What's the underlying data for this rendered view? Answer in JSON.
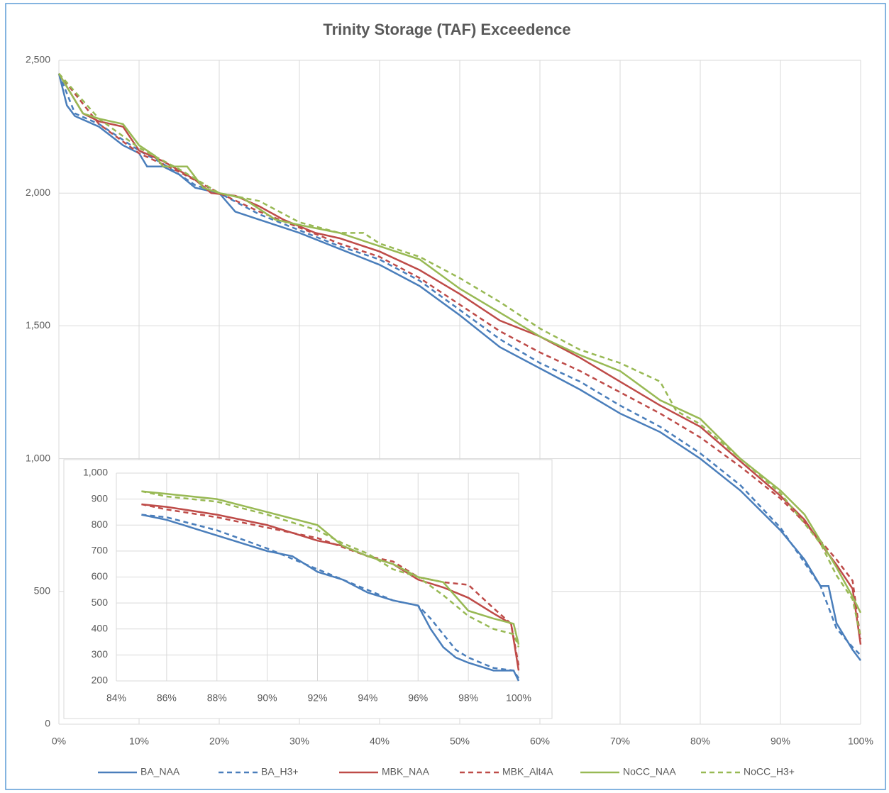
{
  "chart_data": [
    {
      "type": "line",
      "title": "Trinity Storage (TAF) Exceedence",
      "grid": true,
      "legend": "bottom",
      "xlim": [
        0,
        100
      ],
      "ylim": [
        0,
        2500
      ],
      "xticks": [
        {
          "value": 0,
          "label": "0%"
        },
        {
          "value": 10,
          "label": "10%"
        },
        {
          "value": 20,
          "label": "20%"
        },
        {
          "value": 30,
          "label": "30%"
        },
        {
          "value": 40,
          "label": "40%"
        },
        {
          "value": 50,
          "label": "50%"
        },
        {
          "value": 60,
          "label": "60%"
        },
        {
          "value": 70,
          "label": "70%"
        },
        {
          "value": 80,
          "label": "80%"
        },
        {
          "value": 90,
          "label": "90%"
        },
        {
          "value": 100,
          "label": "100%"
        }
      ],
      "yticks": [
        0,
        500,
        {
          "value": 1000,
          "label": "1,000"
        },
        {
          "value": 1500,
          "label": "1,500"
        },
        {
          "value": 2000,
          "label": "2,000"
        },
        {
          "value": 2500,
          "label": "2,500"
        }
      ],
      "series": [
        {
          "name": "BA_NAA",
          "color": "#4a7ebb",
          "dashed": false,
          "x": [
            0,
            1,
            2,
            5,
            8,
            10,
            11,
            13,
            15,
            17,
            20,
            22,
            25,
            28,
            30,
            35,
            40,
            45,
            50,
            55,
            60,
            65,
            70,
            75,
            80,
            85,
            90,
            93,
            95,
            96,
            97,
            99,
            100
          ],
          "values": [
            2450,
            2330,
            2290,
            2250,
            2180,
            2150,
            2100,
            2100,
            2070,
            2020,
            2000,
            1930,
            1900,
            1870,
            1850,
            1790,
            1730,
            1650,
            1540,
            1420,
            1340,
            1260,
            1170,
            1100,
            1000,
            880,
            730,
            620,
            520,
            520,
            380,
            280,
            240
          ]
        },
        {
          "name": "BA_H3+",
          "color": "#4a7ebb",
          "dashed": true,
          "x": [
            0,
            2,
            5,
            10,
            13,
            17,
            20,
            25,
            30,
            35,
            40,
            45,
            50,
            55,
            60,
            65,
            70,
            75,
            80,
            85,
            90,
            95,
            97,
            99,
            100
          ],
          "values": [
            2450,
            2300,
            2260,
            2160,
            2110,
            2030,
            2000,
            1920,
            1860,
            1800,
            1750,
            1670,
            1560,
            1450,
            1360,
            1290,
            1200,
            1120,
            1020,
            900,
            740,
            520,
            360,
            290,
            260
          ]
        },
        {
          "name": "MBK_NAA",
          "color": "#be4b48",
          "dashed": false,
          "x": [
            0,
            3,
            5,
            8,
            10,
            13,
            17,
            19,
            22,
            25,
            28,
            32,
            35,
            40,
            45,
            50,
            55,
            60,
            65,
            70,
            75,
            80,
            85,
            90,
            93,
            95,
            97,
            99,
            100
          ],
          "values": [
            2450,
            2300,
            2270,
            2250,
            2160,
            2120,
            2050,
            2000,
            1990,
            1950,
            1900,
            1850,
            1830,
            1780,
            1710,
            1620,
            1520,
            1460,
            1380,
            1290,
            1200,
            1120,
            990,
            860,
            770,
            680,
            600,
            510,
            300
          ]
        },
        {
          "name": "MBK_Alt4A",
          "color": "#be4b48",
          "dashed": true,
          "x": [
            0,
            5,
            10,
            15,
            20,
            25,
            30,
            35,
            40,
            45,
            50,
            55,
            60,
            65,
            70,
            75,
            80,
            85,
            90,
            93,
            95,
            97,
            99,
            100
          ],
          "values": [
            2450,
            2260,
            2150,
            2080,
            2000,
            1930,
            1870,
            1810,
            1760,
            1680,
            1580,
            1480,
            1400,
            1330,
            1250,
            1170,
            1080,
            970,
            850,
            760,
            690,
            620,
            540,
            320
          ]
        },
        {
          "name": "NoCC_NAA",
          "color": "#98b954",
          "dashed": false,
          "x": [
            0,
            3,
            5,
            8,
            10,
            12,
            13,
            16,
            18,
            20,
            23,
            27,
            30,
            35,
            40,
            45,
            50,
            55,
            60,
            65,
            70,
            75,
            80,
            85,
            90,
            93,
            95,
            97,
            99,
            100
          ],
          "values": [
            2450,
            2300,
            2280,
            2260,
            2180,
            2140,
            2100,
            2100,
            2020,
            2000,
            1980,
            1900,
            1880,
            1850,
            1800,
            1750,
            1640,
            1550,
            1460,
            1390,
            1330,
            1220,
            1150,
            1000,
            880,
            790,
            690,
            590,
            480,
            420
          ]
        },
        {
          "name": "NoCC_H3+",
          "color": "#98b954",
          "dashed": true,
          "x": [
            0,
            5,
            10,
            15,
            20,
            25,
            30,
            35,
            38,
            40,
            45,
            50,
            55,
            60,
            65,
            70,
            75,
            77,
            80,
            85,
            90,
            95,
            97,
            99,
            100
          ],
          "values": [
            2450,
            2280,
            2170,
            2090,
            2000,
            1970,
            1890,
            1850,
            1850,
            1810,
            1760,
            1680,
            1590,
            1490,
            1410,
            1360,
            1290,
            1180,
            1130,
            1000,
            870,
            680,
            560,
            470,
            330
          ]
        }
      ]
    },
    {
      "type": "line",
      "grid": true,
      "xlim": [
        84,
        100
      ],
      "ylim": [
        200,
        1000
      ],
      "xticks": [
        {
          "value": 84,
          "label": "84%"
        },
        {
          "value": 86,
          "label": "86%"
        },
        {
          "value": 88,
          "label": "88%"
        },
        {
          "value": 90,
          "label": "90%"
        },
        {
          "value": 92,
          "label": "92%"
        },
        {
          "value": 94,
          "label": "94%"
        },
        {
          "value": 96,
          "label": "96%"
        },
        {
          "value": 98,
          "label": "98%"
        },
        {
          "value": 100,
          "label": "100%"
        }
      ],
      "yticks": [
        200,
        300,
        400,
        500,
        600,
        700,
        800,
        900,
        {
          "value": 1000,
          "label": "1,000"
        }
      ],
      "series": [
        {
          "color": "#4a7ebb",
          "dashed": false,
          "x": [
            85,
            86,
            87,
            88,
            89,
            90,
            91,
            92,
            93,
            94,
            95,
            96,
            96.5,
            97,
            97.5,
            98,
            99,
            99.8,
            100
          ],
          "values": [
            840,
            820,
            790,
            760,
            730,
            700,
            680,
            620,
            590,
            540,
            510,
            490,
            400,
            330,
            290,
            270,
            240,
            240,
            200
          ]
        },
        {
          "color": "#4a7ebb",
          "dashed": true,
          "x": [
            85,
            86,
            88,
            90,
            92,
            94,
            95,
            96,
            96.5,
            97,
            97.5,
            98,
            99,
            99.8,
            100
          ],
          "values": [
            840,
            830,
            780,
            710,
            630,
            550,
            510,
            490,
            440,
            380,
            320,
            290,
            250,
            240,
            210
          ]
        },
        {
          "color": "#be4b48",
          "dashed": false,
          "x": [
            85,
            86,
            88,
            90,
            92,
            93,
            94,
            95,
            96,
            97,
            98,
            99,
            99.7,
            100
          ],
          "values": [
            880,
            870,
            840,
            800,
            740,
            720,
            680,
            650,
            590,
            560,
            520,
            460,
            420,
            240
          ]
        },
        {
          "color": "#be4b48",
          "dashed": true,
          "x": [
            85,
            86,
            88,
            90,
            92,
            94,
            95,
            96,
            97,
            98,
            99,
            99.7,
            100
          ],
          "values": [
            880,
            860,
            830,
            790,
            750,
            680,
            660,
            600,
            580,
            570,
            480,
            420,
            260
          ]
        },
        {
          "color": "#98b954",
          "dashed": false,
          "x": [
            85,
            86,
            88,
            90,
            92,
            93,
            94,
            95,
            96,
            97,
            98,
            99,
            99.8,
            100
          ],
          "values": [
            930,
            920,
            900,
            850,
            800,
            720,
            680,
            650,
            600,
            580,
            470,
            440,
            420,
            340
          ]
        },
        {
          "color": "#98b954",
          "dashed": true,
          "x": [
            85,
            86,
            88,
            90,
            92,
            93,
            94,
            95,
            96,
            97,
            98,
            99,
            99.8,
            100
          ],
          "values": [
            930,
            910,
            890,
            840,
            780,
            730,
            690,
            630,
            600,
            530,
            450,
            400,
            380,
            330
          ]
        }
      ]
    }
  ]
}
